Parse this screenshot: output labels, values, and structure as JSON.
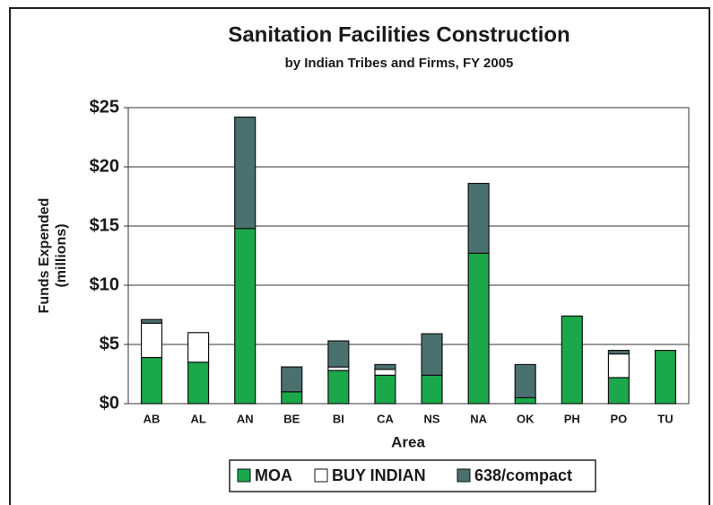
{
  "chart_data": {
    "type": "stacked_bar",
    "title": "Sanitation Facilities Construction",
    "subtitle": "by Indian Tribes and Firms, FY 2005",
    "xlabel": "Area",
    "ylabel": [
      "Funds Expended",
      "(millions)"
    ],
    "categories": [
      "AB",
      "AL",
      "AN",
      "BE",
      "BI",
      "CA",
      "NS",
      "NA",
      "OK",
      "PH",
      "PO",
      "TU"
    ],
    "series": [
      {
        "name": "MOA",
        "color": "#1aa84a",
        "values": [
          3.9,
          3.5,
          14.8,
          1.0,
          2.8,
          2.4,
          2.4,
          12.7,
          0.5,
          7.4,
          2.2,
          4.5
        ]
      },
      {
        "name": "BUY INDIAN",
        "color": "#ffffff",
        "values": [
          2.9,
          2.5,
          0,
          0,
          0.3,
          0.5,
          0,
          0,
          0,
          0,
          2.0,
          0
        ]
      },
      {
        "name": "638/compact",
        "color": "#4a7070",
        "values": [
          0.3,
          0,
          9.4,
          2.1,
          2.2,
          0.4,
          3.5,
          5.9,
          2.8,
          0,
          0.3,
          0
        ]
      }
    ],
    "ylim": [
      0,
      25
    ],
    "yticks": [
      {
        "value": 0,
        "label": "$0"
      },
      {
        "value": 5,
        "label": "$5"
      },
      {
        "value": 10,
        "label": "$10"
      },
      {
        "value": 15,
        "label": "$15"
      },
      {
        "value": 20,
        "label": "$20"
      },
      {
        "value": 25,
        "label": "$25"
      }
    ],
    "legend": "bottom"
  }
}
